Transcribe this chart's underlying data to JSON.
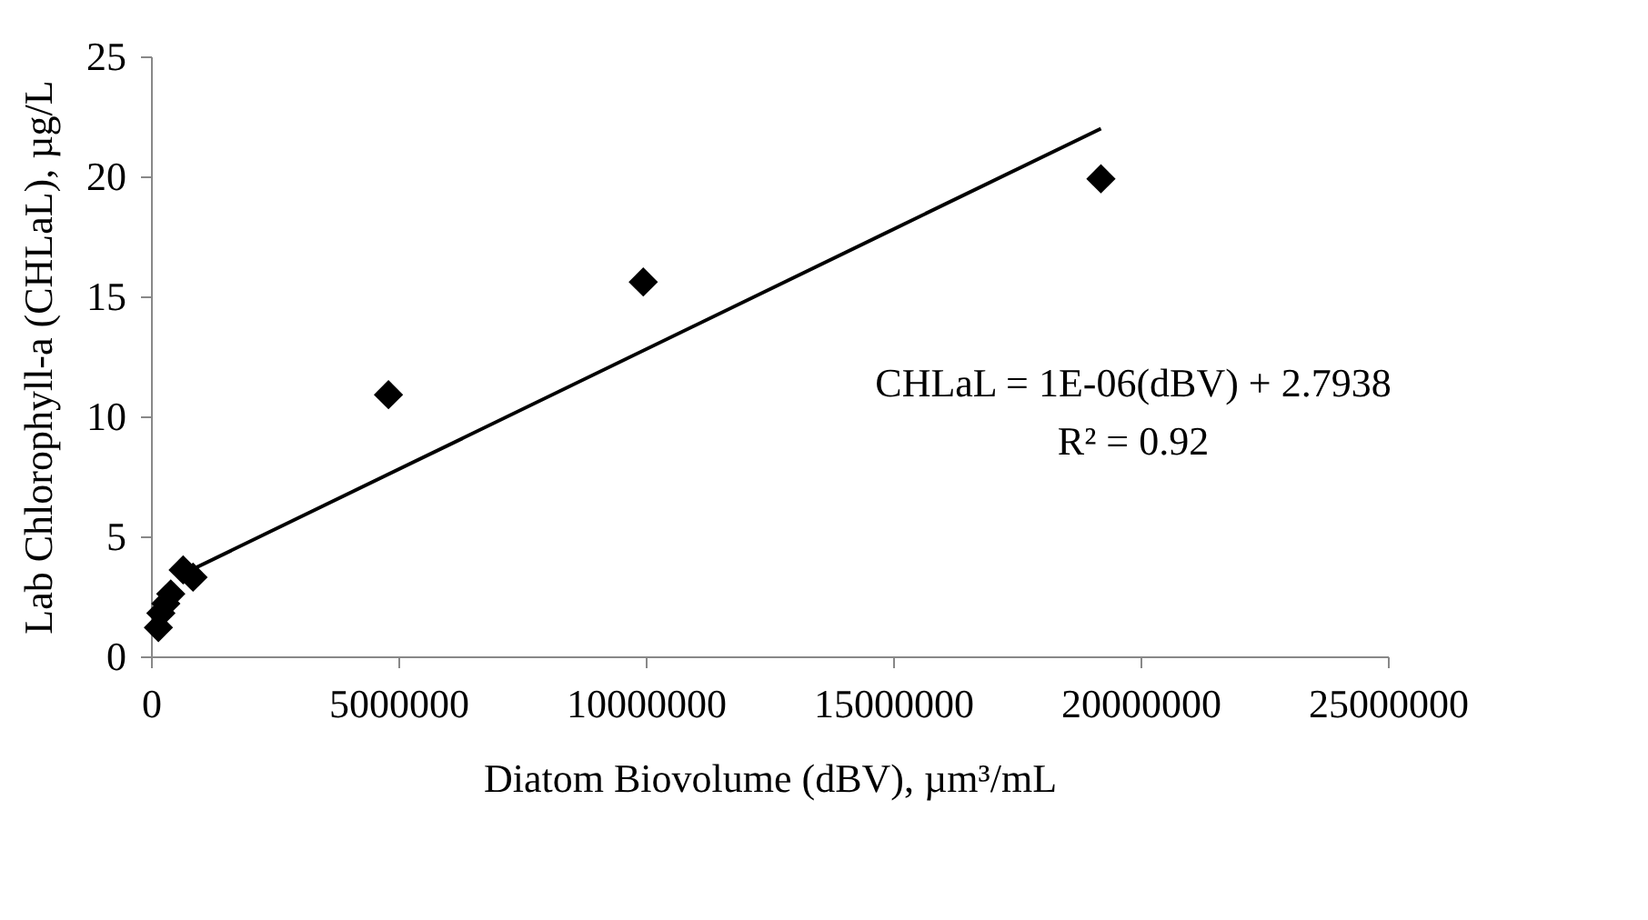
{
  "chart_data": {
    "type": "scatter",
    "xlabel": "Diatom Biovolume (dBV), µm³/mL",
    "ylabel": "Lab Chlorophyll-a (CHLaL), µg/L",
    "xlim": [
      0,
      25000000
    ],
    "xticks": [
      0,
      5000000,
      10000000,
      15000000,
      20000000,
      25000000
    ],
    "ylim": [
      0,
      25
    ],
    "yticks": [
      0,
      5,
      10,
      15,
      20,
      25
    ],
    "grid": false,
    "series": [
      {
        "color": "#000000",
        "marker": "diamond",
        "x": [
          150000,
          200000,
          300000,
          400000,
          650000,
          850000,
          4800000,
          9950000,
          19200000
        ],
        "values": [
          1.2,
          1.8,
          2.2,
          2.6,
          3.6,
          3.3,
          10.9,
          15.6,
          19.9
        ]
      },
      {
        "type": "line",
        "color": "#000000",
        "line_style": "solid",
        "x": [
          650000,
          19200000
        ],
        "values": [
          3.44,
          21.99
        ]
      }
    ],
    "annotations": [
      "CHLaL = 1E-06(dBV) + 2.7938",
      "R² = 0.92"
    ]
  }
}
